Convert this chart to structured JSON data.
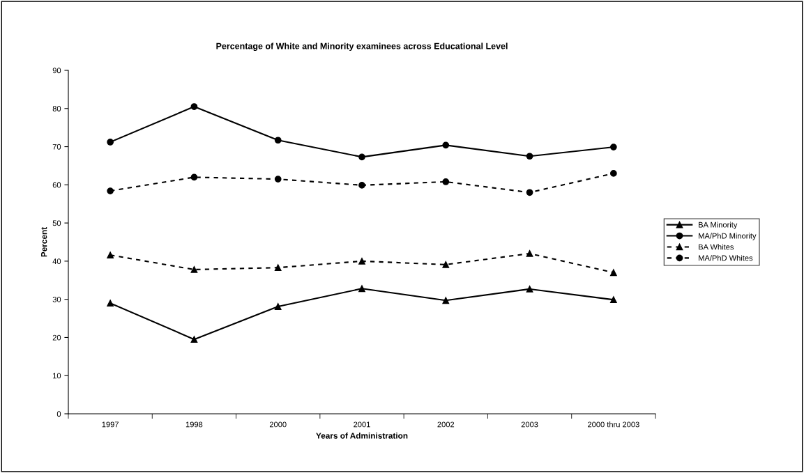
{
  "chart_data": {
    "type": "line",
    "title": "Percentage of White and Minority examinees across Educational Level",
    "xlabel": "Years of Administration",
    "ylabel": "Percent",
    "categories": [
      "1997",
      "1998",
      "2000",
      "2001",
      "2002",
      "2003",
      "2000 thru 2003"
    ],
    "series": [
      {
        "name": "BA Minority",
        "color": "#000000",
        "marker": "triangle",
        "line_style": "solid",
        "values": [
          29.0,
          19.5,
          28.1,
          32.8,
          29.7,
          32.7,
          29.9
        ]
      },
      {
        "name": "MA/PhD Minority",
        "color": "#000000",
        "marker": "circle",
        "line_style": "solid",
        "values": [
          71.2,
          80.5,
          71.7,
          67.3,
          70.4,
          67.5,
          69.9
        ]
      },
      {
        "name": "BA Whites",
        "color": "#000000",
        "marker": "triangle",
        "line_style": "dashed",
        "values": [
          41.6,
          37.8,
          38.3,
          40.0,
          39.1,
          42.0,
          37.0
        ]
      },
      {
        "name": "MA/PhD Whites",
        "color": "#000000",
        "marker": "circle",
        "line_style": "dashed",
        "values": [
          58.4,
          62.0,
          61.5,
          59.9,
          60.8,
          58.0,
          63.0
        ]
      }
    ],
    "ylim": [
      0,
      90
    ],
    "yticks": [
      0,
      10,
      20,
      30,
      40,
      50,
      60,
      70,
      80,
      90
    ],
    "grid": false,
    "legend": "right"
  }
}
